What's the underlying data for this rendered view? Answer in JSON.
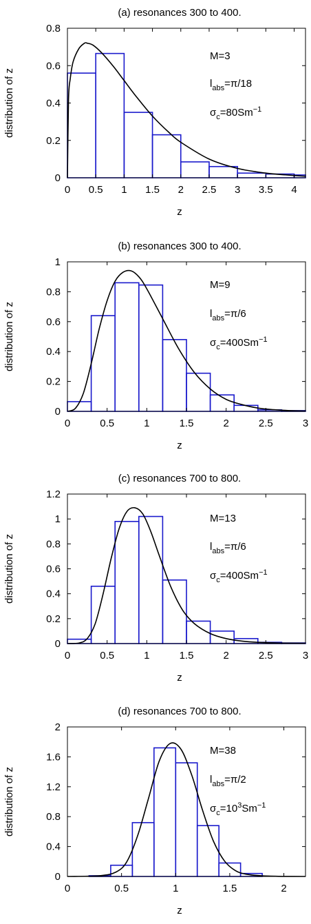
{
  "chart_data": [
    {
      "type": "bar",
      "title": "(a) resonances 300 to 400.",
      "xlabel": "z",
      "ylabel": "distribution of z",
      "xlim": [
        0,
        4.2
      ],
      "ylim": [
        0,
        0.8
      ],
      "xticks": [
        0,
        0.5,
        1,
        1.5,
        2,
        2.5,
        3,
        3.5,
        4
      ],
      "xtick_labels": [
        "0",
        "0.5",
        "1",
        "1.5",
        "2",
        "2.5",
        "3",
        "3.5",
        "4"
      ],
      "yticks": [
        0,
        0.2,
        0.4,
        0.6,
        0.8
      ],
      "ytick_labels": [
        "0",
        "0.2",
        "0.4",
        "0.6",
        "0.8"
      ],
      "grid": false,
      "bar_color": "#1a1acc",
      "curve_color": "#000000",
      "histogram": {
        "bin_edges": [
          0,
          0.5,
          1,
          1.5,
          2,
          2.5,
          3,
          3.5,
          4,
          4.2
        ],
        "values": [
          0.56,
          0.665,
          0.35,
          0.23,
          0.085,
          0.06,
          0.025,
          0.02,
          0.015
        ]
      },
      "curve": {
        "x": [
          0,
          0.02,
          0.05,
          0.1,
          0.2,
          0.3,
          0.35,
          0.45,
          0.6,
          0.8,
          1.0,
          1.2,
          1.5,
          1.8,
          2.0,
          2.5,
          3.0,
          3.5,
          4.0,
          4.2
        ],
        "y": [
          0,
          0.42,
          0.53,
          0.62,
          0.69,
          0.72,
          0.72,
          0.71,
          0.67,
          0.6,
          0.52,
          0.44,
          0.33,
          0.24,
          0.19,
          0.1,
          0.05,
          0.025,
          0.012,
          0.008
        ]
      },
      "annotations": [
        {
          "main": "M=3",
          "sub": "",
          "sup": "",
          "tail": ""
        },
        {
          "main": "l",
          "sub": "abs",
          "sup": "",
          "tail": "=π/18"
        },
        {
          "main": "σ",
          "sub": "c",
          "sup": "",
          "tail": "=80Sm",
          "sup2": "−1"
        }
      ]
    },
    {
      "type": "bar",
      "title": "(b) resonances 300 to 400.",
      "xlabel": "z",
      "ylabel": "distribution of z",
      "xlim": [
        0,
        3
      ],
      "ylim": [
        0,
        1
      ],
      "xticks": [
        0,
        0.5,
        1,
        1.5,
        2,
        2.5,
        3
      ],
      "xtick_labels": [
        "0",
        "0.5",
        "1",
        "1.5",
        "2",
        "2.5",
        "3"
      ],
      "yticks": [
        0,
        0.2,
        0.4,
        0.6,
        0.8,
        1
      ],
      "ytick_labels": [
        "0",
        "0.2",
        "0.4",
        "0.6",
        "0.8",
        "1"
      ],
      "grid": false,
      "bar_color": "#1a1acc",
      "curve_color": "#000000",
      "histogram": {
        "bin_edges": [
          0,
          0.3,
          0.6,
          0.9,
          1.2,
          1.5,
          1.8,
          2.1,
          2.4,
          2.7,
          3.0
        ],
        "values": [
          0.065,
          0.64,
          0.86,
          0.845,
          0.48,
          0.255,
          0.11,
          0.04,
          0.01,
          0.005
        ]
      },
      "curve": {
        "x": [
          0,
          0.1,
          0.2,
          0.3,
          0.4,
          0.5,
          0.6,
          0.7,
          0.8,
          0.9,
          1.0,
          1.2,
          1.4,
          1.6,
          1.8,
          2.0,
          2.2,
          2.4,
          2.6,
          2.8,
          3.0
        ],
        "y": [
          0,
          0.02,
          0.12,
          0.32,
          0.55,
          0.74,
          0.87,
          0.93,
          0.94,
          0.9,
          0.82,
          0.62,
          0.42,
          0.26,
          0.15,
          0.08,
          0.045,
          0.022,
          0.011,
          0.005,
          0.002
        ]
      },
      "annotations": [
        {
          "main": "M=9",
          "sub": "",
          "sup": "",
          "tail": ""
        },
        {
          "main": "l",
          "sub": "abs",
          "sup": "",
          "tail": "=π/6"
        },
        {
          "main": "σ",
          "sub": "c",
          "sup": "",
          "tail": "=400Sm",
          "sup2": "−1"
        }
      ]
    },
    {
      "type": "bar",
      "title": "(c) resonances 700 to 800.",
      "xlabel": "z",
      "ylabel": "distribution of z",
      "xlim": [
        0,
        3
      ],
      "ylim": [
        0,
        1.2
      ],
      "xticks": [
        0,
        0.5,
        1,
        1.5,
        2,
        2.5,
        3
      ],
      "xtick_labels": [
        "0",
        "0.5",
        "1",
        "1.5",
        "2",
        "2.5",
        "3"
      ],
      "yticks": [
        0,
        0.2,
        0.4,
        0.6,
        0.8,
        1,
        1.2
      ],
      "ytick_labels": [
        "0",
        "0.2",
        "0.4",
        "0.6",
        "0.8",
        "1",
        "1.2"
      ],
      "grid": false,
      "bar_color": "#1a1acc",
      "curve_color": "#000000",
      "histogram": {
        "bin_edges": [
          0,
          0.3,
          0.6,
          0.9,
          1.2,
          1.5,
          1.8,
          2.1,
          2.4,
          2.7,
          3.0
        ],
        "values": [
          0.035,
          0.46,
          0.98,
          1.02,
          0.51,
          0.18,
          0.1,
          0.04,
          0.01,
          0.005
        ]
      },
      "curve": {
        "x": [
          0,
          0.15,
          0.25,
          0.35,
          0.45,
          0.55,
          0.65,
          0.75,
          0.85,
          0.95,
          1.05,
          1.15,
          1.3,
          1.45,
          1.6,
          1.8,
          2.0,
          2.2,
          2.4,
          2.7,
          3.0
        ],
        "y": [
          0,
          0.005,
          0.04,
          0.16,
          0.4,
          0.68,
          0.92,
          1.06,
          1.09,
          1.04,
          0.9,
          0.72,
          0.46,
          0.27,
          0.16,
          0.08,
          0.04,
          0.02,
          0.01,
          0.004,
          0.002
        ]
      },
      "annotations": [
        {
          "main": "M=13",
          "sub": "",
          "sup": "",
          "tail": ""
        },
        {
          "main": "l",
          "sub": "abs",
          "sup": "",
          "tail": "=π/6"
        },
        {
          "main": "σ",
          "sub": "c",
          "sup": "",
          "tail": "=400Sm",
          "sup2": "−1"
        }
      ]
    },
    {
      "type": "bar",
      "title": "(d) resonances 700 to 800.",
      "xlabel": "z",
      "ylabel": "distribution of z",
      "xlim": [
        0,
        2.2
      ],
      "ylim": [
        0,
        2
      ],
      "xticks": [
        0,
        0.5,
        1,
        1.5,
        2
      ],
      "xtick_labels": [
        "0",
        "0.5",
        "1",
        "1.5",
        "2"
      ],
      "yticks": [
        0,
        0.4,
        0.8,
        1.2,
        1.6,
        2
      ],
      "ytick_labels": [
        "0",
        "0.4",
        "0.8",
        "1.2",
        "1.6",
        "2"
      ],
      "grid": false,
      "bar_color": "#1a1acc",
      "curve_color": "#000000",
      "histogram": {
        "bin_edges": [
          0.2,
          0.4,
          0.6,
          0.8,
          1.0,
          1.2,
          1.4,
          1.6,
          1.8
        ],
        "values": [
          0.01,
          0.15,
          0.72,
          1.72,
          1.52,
          0.68,
          0.18,
          0.04
        ]
      },
      "curve": {
        "x": [
          0,
          0.3,
          0.45,
          0.55,
          0.65,
          0.75,
          0.85,
          0.95,
          1.05,
          1.15,
          1.25,
          1.35,
          1.45,
          1.55,
          1.65,
          1.8,
          2.0,
          2.2
        ],
        "y": [
          0,
          0.01,
          0.06,
          0.2,
          0.55,
          1.05,
          1.55,
          1.78,
          1.7,
          1.35,
          0.88,
          0.47,
          0.21,
          0.08,
          0.03,
          0.008,
          0.001,
          0
        ]
      },
      "annotations": [
        {
          "main": "M=38",
          "sub": "",
          "sup": "",
          "tail": ""
        },
        {
          "main": "l",
          "sub": "abs",
          "sup": "",
          "tail": "=π/2"
        },
        {
          "main": "σ",
          "sub": "c",
          "sup": "",
          "tail": "=10",
          "sup2": "3",
          "tail2": "Sm",
          "sup3": "−1"
        }
      ]
    }
  ]
}
